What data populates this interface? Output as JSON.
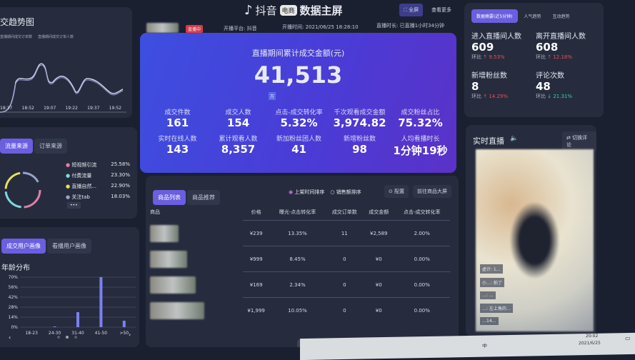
{
  "header": {
    "logo_text": "抖音",
    "logo_badge": "电商",
    "title": "数据主屏",
    "fullscreen_label": "全屏",
    "more_label": "查看更多",
    "live_badge": "直播中",
    "platform": "开播平台: 抖音",
    "start_time": "开播时间: 2021/06/25 18:28:10",
    "duration": "直播时长: 已直播1小时34分钟"
  },
  "trend": {
    "title": "交趋势图",
    "legend": [
      "直播期间成交订单数",
      "直播期间成交订单人数"
    ],
    "x_labels": [
      "18:37",
      "18:52",
      "19:07",
      "19:22",
      "19:37",
      "19:52"
    ]
  },
  "summary": {
    "title": "直播期间累计成交金额(元)",
    "amount": "41,513",
    "unit": "万",
    "kpis": [
      {
        "label": "成交件数",
        "value": "161"
      },
      {
        "label": "成交人数",
        "value": "154"
      },
      {
        "label": "点击-成交转化率",
        "value": "5.32%"
      },
      {
        "label": "千次观看成交金额",
        "value": "3,974.82"
      },
      {
        "label": "成交粉丝占比",
        "value": "75.32%"
      },
      {
        "label": "实时在线人数",
        "value": "143"
      },
      {
        "label": "累计观看人数",
        "value": "8,357"
      },
      {
        "label": "新加粉丝团人数",
        "value": "41"
      },
      {
        "label": "新增粉丝数",
        "value": "98"
      },
      {
        "label": "人均看播时长",
        "value": "1分钟19秒"
      }
    ]
  },
  "source": {
    "tabs": [
      "流量来源",
      "订单来源"
    ],
    "items": [
      {
        "label": "短视频引流",
        "pct": "25.58%",
        "color": "#e07fa8"
      },
      {
        "label": "付费流量",
        "pct": "23.30%",
        "color": "#7fd8e0"
      },
      {
        "label": "直播自然...",
        "pct": "22.90%",
        "color": "#e6e15a"
      },
      {
        "label": "关注tab",
        "pct": "18.03%",
        "color": "#9aa3c8"
      }
    ],
    "more": "•••"
  },
  "portrait": {
    "tabs": [
      "成交用户画像",
      "看播用户画像"
    ],
    "title": "年龄分布"
  },
  "chart_data": {
    "type": "bar",
    "title": "年龄分布",
    "categories": [
      "18-23",
      "24-30",
      "31-40",
      "41-50",
      ">50"
    ],
    "values": [
      0,
      1,
      21,
      70,
      9
    ],
    "y_ticks": [
      "0%",
      "14%",
      "28%",
      "42%",
      "56%",
      "70%"
    ],
    "ylim": [
      0,
      70
    ],
    "grid": true,
    "color": "#7d7ff0"
  },
  "products": {
    "tabs": [
      "商品列表",
      "商品推荐"
    ],
    "sort_options": [
      "上架时间排序",
      "销售额排序"
    ],
    "config_label": "配置",
    "goto_label": "前往商品大屏",
    "columns": [
      "商品",
      "价格",
      "曝光-点击转化率",
      "成交订单数",
      "成交金额",
      "点击-成交转化率"
    ],
    "rows": [
      [
        "¥239",
        "13.35%",
        "11",
        "¥2,589",
        "2.00%"
      ],
      [
        "¥999",
        "8.45%",
        "0",
        "¥0",
        "0.00%"
      ],
      [
        "¥169",
        "2.34%",
        "0",
        "¥0",
        "0.00%"
      ],
      [
        "¥1,999",
        "10.05%",
        "0",
        "¥0",
        "0.00%"
      ]
    ]
  },
  "realtime": {
    "tabs": [
      "数据摘要(近5分钟)",
      "人气趋势",
      "互动趋势"
    ],
    "stats": [
      {
        "label": "进入直播间人数",
        "value": "609",
        "change": "9.53%",
        "dir": "up"
      },
      {
        "label": "离开直播间人数",
        "value": "608",
        "change": "12.18%",
        "dir": "up"
      },
      {
        "label": "新增粉丝数",
        "value": "8",
        "change": "14.29%",
        "dir": "up"
      },
      {
        "label": "评论次数",
        "value": "48",
        "change": "21.31%",
        "dir": "down"
      }
    ],
    "compare_label": "环比"
  },
  "live": {
    "title": "实时直播",
    "switch_label": "切换评论",
    "comments": [
      "虚计: 1…",
      "小…: 拍了",
      "…: …",
      "…: 左上角的…",
      "…14…"
    ]
  },
  "taskbar": {
    "time": "20:02",
    "date": "2021/6/25",
    "ime": "中"
  }
}
